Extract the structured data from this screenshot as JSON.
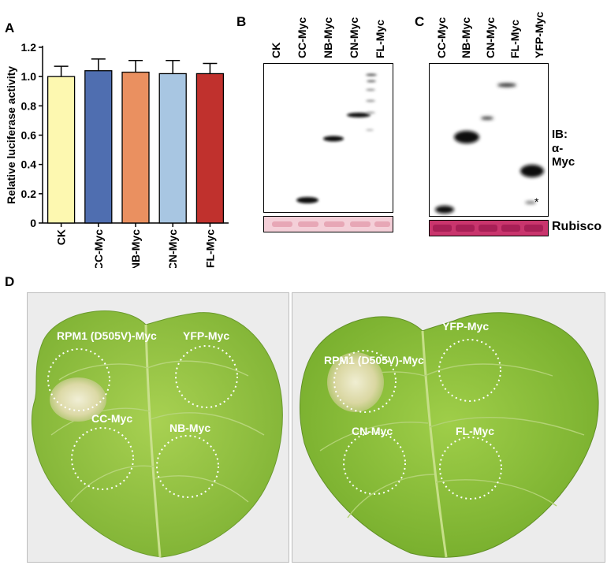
{
  "panels": {
    "a": "A",
    "b": "B",
    "c": "C",
    "d": "D"
  },
  "chart_data": {
    "type": "bar",
    "categories": [
      "CK",
      "CC-Myc",
      "NB-Myc",
      "CN-Myc",
      "FL-Myc"
    ],
    "values": [
      1.0,
      1.04,
      1.03,
      1.02,
      1.02
    ],
    "errors": [
      0.07,
      0.08,
      0.08,
      0.09,
      0.07
    ],
    "colors": [
      "#fdf8b0",
      "#4f6eb0",
      "#ea9060",
      "#a8c6e2",
      "#c0312d"
    ],
    "ylabel": "Relative luciferase activity",
    "xlabel": "",
    "ylim": [
      0,
      1.2
    ],
    "yticks": [
      "0",
      "0.2",
      "0.4",
      "0.6",
      "0.8",
      "1.0",
      "1.2"
    ],
    "grid": false
  },
  "blot_b": {
    "lanes": [
      "CK",
      "CC-Myc",
      "NB-Myc",
      "CN-Myc",
      "FL-Myc"
    ]
  },
  "blot_c": {
    "lanes": [
      "CC-Myc",
      "NB-Myc",
      "CN-Myc",
      "FL-Myc",
      "YFP-Myc"
    ],
    "ib_label": "IB:",
    "antibody": "α-Myc",
    "asterisk": "*",
    "loading_label": "Rubisco"
  },
  "leaf_left": {
    "spots": [
      "RPM1 (D505V)-Myc",
      "YFP-Myc",
      "CC-Myc",
      "NB-Myc"
    ],
    "leaf_color": "#9bc94a"
  },
  "leaf_right": {
    "spots": [
      "RPM1 (D505V)-Myc",
      "YFP-Myc",
      "CN-Myc",
      "FL-Myc"
    ],
    "leaf_color": "#8fc240"
  }
}
